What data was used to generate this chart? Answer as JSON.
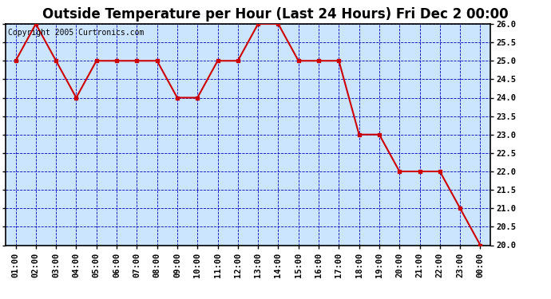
{
  "title": "Outside Temperature per Hour (Last 24 Hours) Fri Dec 2 00:00",
  "copyright": "Copyright 2005 Curtronics.com",
  "x_labels": [
    "01:00",
    "02:00",
    "03:00",
    "04:00",
    "05:00",
    "06:00",
    "07:00",
    "08:00",
    "09:00",
    "10:00",
    "11:00",
    "12:00",
    "13:00",
    "14:00",
    "15:00",
    "16:00",
    "17:00",
    "18:00",
    "19:00",
    "20:00",
    "21:00",
    "22:00",
    "23:00",
    "00:00"
  ],
  "y_values": [
    25.0,
    26.0,
    25.0,
    24.0,
    25.0,
    25.0,
    25.0,
    25.0,
    24.0,
    24.0,
    25.0,
    25.0,
    26.0,
    26.0,
    25.0,
    25.0,
    25.0,
    23.0,
    23.0,
    22.0,
    22.0,
    22.0,
    21.0,
    20.0
  ],
  "line_color": "#cc0000",
  "marker_color": "#cc0000",
  "plot_bg_color": "#cce5ff",
  "title_bg_color": "#ffffff",
  "border_color": "#000000",
  "grid_color": "#0000bb",
  "ylim_min": 20.0,
  "ylim_max": 26.0,
  "ytick_step": 0.5,
  "title_fontsize": 12,
  "tick_fontsize": 7.5,
  "copyright_fontsize": 7
}
